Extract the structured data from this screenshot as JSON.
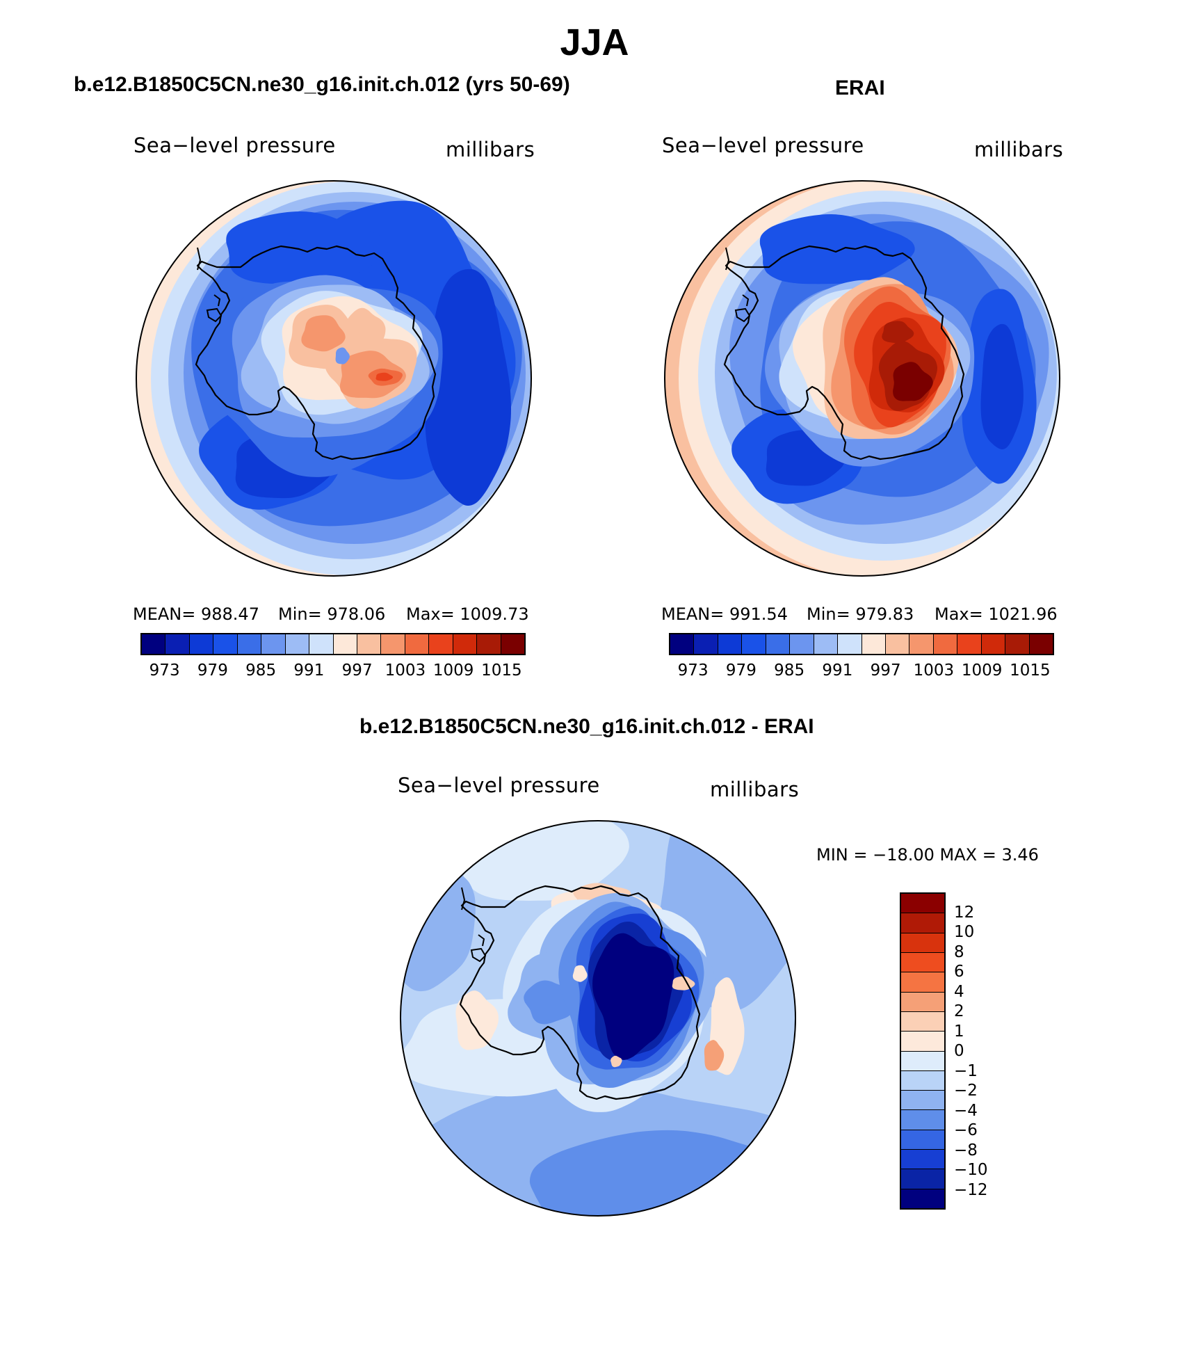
{
  "page_title": "JJA",
  "colors": {
    "seq": [
      "#00007f",
      "#0a1fb3",
      "#0d3ad6",
      "#1a52e8",
      "#3a6ee8",
      "#6c95ef",
      "#9dbcf5",
      "#cfe2fb",
      "#fde8d9",
      "#f9c0a0",
      "#f5966d",
      "#f06a3f",
      "#e9421c",
      "#d02a0a",
      "#a81b06",
      "#7a0000"
    ],
    "diff": [
      "#8b0000",
      "#b01a06",
      "#d8330d",
      "#ee4d1f",
      "#f57442",
      "#f5a077",
      "#fbd0b6",
      "#fde9db",
      "#deecfb",
      "#b9d3f7",
      "#8fb3f1",
      "#5f8eea",
      "#3566e3",
      "#173fd3",
      "#0a24a6",
      "#00007f"
    ]
  },
  "chart_data": [
    {
      "type": "heatmap",
      "title": "b.e12.B1850C5CN.ne30_g16.init.ch.012 (yrs 50-69)",
      "left_label": "Sea−level pressure",
      "right_label": "millibars",
      "projection": "polar stereographic, South Pole",
      "stats": {
        "mean": 988.47,
        "min": 978.06,
        "max": 1009.73
      },
      "stats_text": {
        "mean": "MEAN=  988.47",
        "min": "Min=  978.06",
        "max": "Max=  1009.73"
      },
      "levels": [
        973,
        976,
        979,
        982,
        985,
        988,
        991,
        994,
        997,
        1000,
        1003,
        1006,
        1009,
        1012,
        1015
      ],
      "tick_labels": [
        "973",
        "979",
        "985",
        "991",
        "997",
        "1003",
        "1009",
        "1015"
      ]
    },
    {
      "type": "heatmap",
      "title": "ERAI",
      "left_label": "Sea−level pressure",
      "right_label": "millibars",
      "projection": "polar stereographic, South Pole",
      "stats": {
        "mean": 991.54,
        "min": 979.83,
        "max": 1021.96
      },
      "stats_text": {
        "mean": "MEAN=  991.54",
        "min": "Min=  979.83",
        "max": "Max=  1021.96"
      },
      "levels": [
        973,
        976,
        979,
        982,
        985,
        988,
        991,
        994,
        997,
        1000,
        1003,
        1006,
        1009,
        1012,
        1015
      ],
      "tick_labels": [
        "973",
        "979",
        "985",
        "991",
        "997",
        "1003",
        "1009",
        "1015"
      ]
    },
    {
      "type": "heatmap",
      "title": "b.e12.B1850C5CN.ne30_g16.init.ch.012 - ERAI",
      "left_label": "Sea−level pressure",
      "right_label": "millibars",
      "projection": "polar stereographic, South Pole",
      "stats": {
        "min": -18.0,
        "max": 3.46
      },
      "stats_text": "MIN = −18.00 MAX =    3.46",
      "levels": [
        12,
        10,
        8,
        6,
        4,
        2,
        1,
        0,
        -1,
        -2,
        -4,
        -6,
        -8,
        -10,
        -12
      ],
      "tick_labels": [
        "12",
        "10",
        "8",
        "6",
        "4",
        "2",
        "1",
        "0",
        "−1",
        "−2",
        "−4",
        "−6",
        "−8",
        "−10",
        "−12"
      ]
    }
  ]
}
